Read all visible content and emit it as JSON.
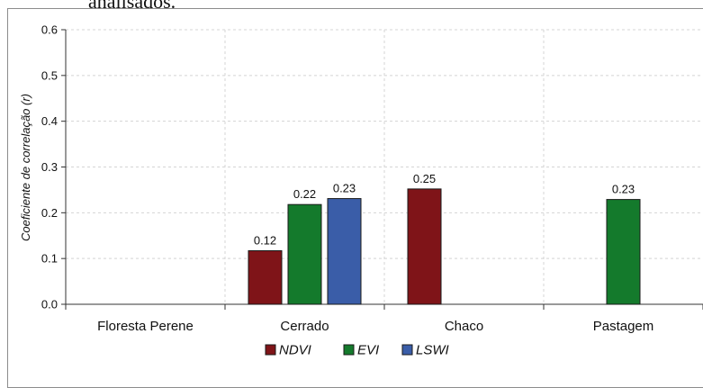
{
  "page": {
    "cropped_heading": "analisados."
  },
  "chart_data": {
    "type": "bar",
    "title": "",
    "xlabel": "",
    "ylabel": "Coeficiente de correlação (r)",
    "ylim": [
      0,
      0.6
    ],
    "yticks": [
      "0.0",
      "0.1",
      "0.2",
      "0.3",
      "0.4",
      "0.5",
      "0.6"
    ],
    "grid": true,
    "legend_position": "bottom",
    "categories": [
      "Floresta Perene",
      "Cerrado",
      "Chaco",
      "Pastagem"
    ],
    "series": [
      {
        "name": "NDVI",
        "color": "#7f1418",
        "values": [
          null,
          0.117,
          0.252,
          null
        ],
        "labels": [
          "",
          "0.12",
          "0.25",
          ""
        ]
      },
      {
        "name": "EVI",
        "color": "#147a2c",
        "values": [
          null,
          0.218,
          null,
          0.229
        ],
        "labels": [
          "",
          "0.22",
          "",
          "0.23"
        ]
      },
      {
        "name": "LSWI",
        "color": "#3a5da8",
        "values": [
          null,
          0.231,
          null,
          null
        ],
        "labels": [
          "",
          "0.23",
          "",
          ""
        ]
      }
    ]
  }
}
